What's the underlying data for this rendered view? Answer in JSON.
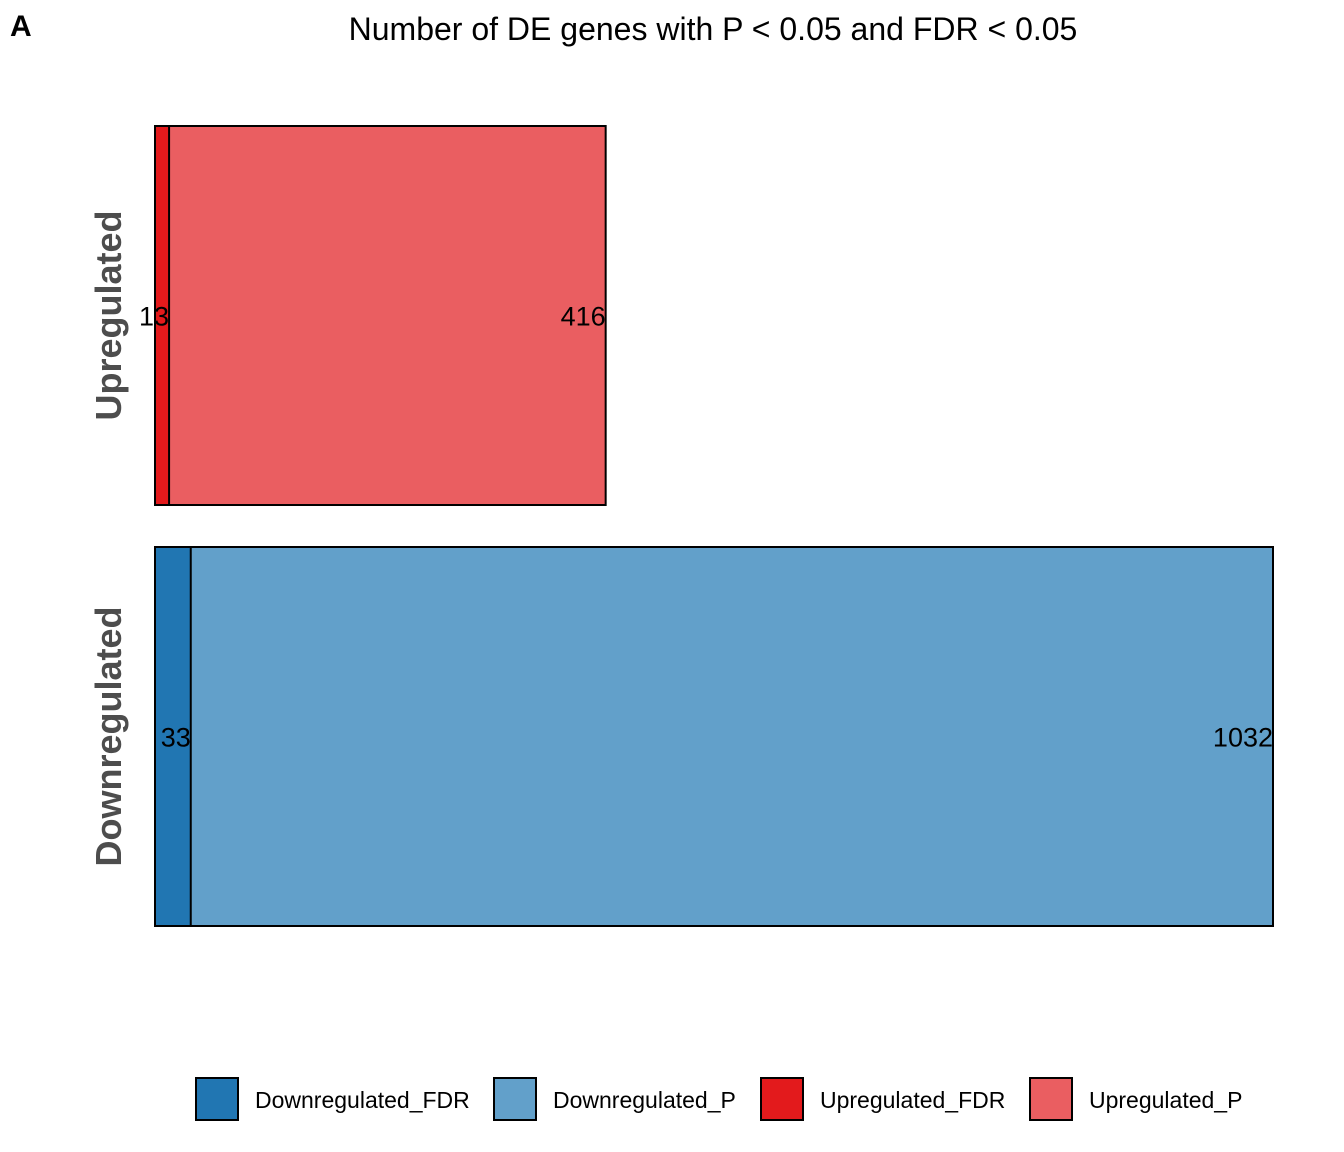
{
  "panel_label": "A",
  "chart_data": {
    "type": "bar",
    "orientation": "horizontal",
    "stacked": false,
    "title": "Number of DE genes with P < 0.05 and FDR < 0.05",
    "xlabel": "",
    "ylabel": "",
    "categories": [
      "Upregulated",
      "Downregulated"
    ],
    "bars": [
      {
        "category": "Upregulated",
        "fdr_series": "Upregulated_FDR",
        "fdr_value": 13,
        "p_series": "Upregulated_P",
        "p_value": 416
      },
      {
        "category": "Downregulated",
        "fdr_series": "Downregulated_FDR",
        "fdr_value": 33,
        "p_series": "Downregulated_P",
        "p_value": 1032
      }
    ],
    "xlim": [
      0,
      1032
    ],
    "grid": false,
    "axes_visible": false,
    "legend": {
      "position": "bottom",
      "entries": [
        {
          "name": "Downregulated_FDR",
          "color": "#2176b2"
        },
        {
          "name": "Downregulated_P",
          "color": "#62a0ca"
        },
        {
          "name": "Upregulated_FDR",
          "color": "#e31a1c"
        },
        {
          "name": "Upregulated_P",
          "color": "#ea5e61"
        }
      ]
    },
    "colors": {
      "Upregulated_FDR": "#e31a1c",
      "Upregulated_P": "#ea5e61",
      "Downregulated_FDR": "#2176b2",
      "Downregulated_P": "#62a0ca",
      "border": "#000000",
      "row_label": "#4d4d4d"
    }
  }
}
